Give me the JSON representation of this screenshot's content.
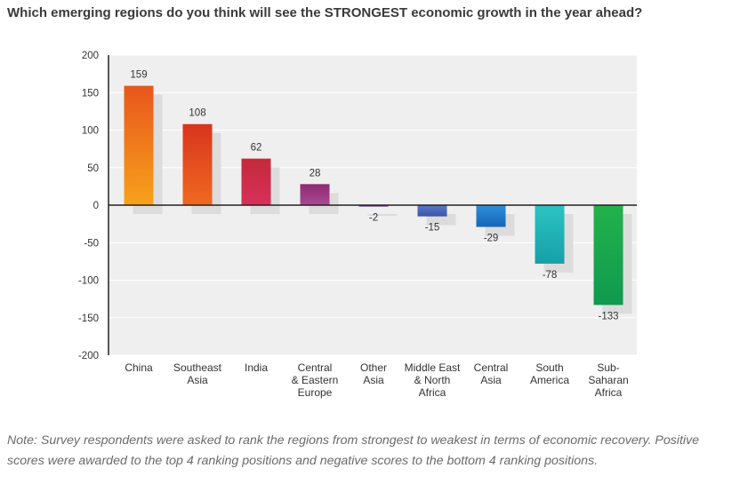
{
  "title": "Which emerging regions do you think will see the STRONGEST economic growth in the year ahead?",
  "note": "Note: Survey respondents were asked to rank the regions from strongest to weakest in terms of economic recovery. Positive scores were awarded to the top 4 ranking positions and negative scores to the bottom 4 ranking positions.",
  "chart_data": {
    "type": "bar",
    "categories": [
      [
        "China"
      ],
      [
        "Southeast",
        "Asia"
      ],
      [
        "India"
      ],
      [
        "Central",
        "& Eastern",
        "Europe"
      ],
      [
        "Other",
        "Asia"
      ],
      [
        "Middle East",
        "& North",
        "Africa"
      ],
      [
        "Central",
        "Asia"
      ],
      [
        "South",
        "America"
      ],
      [
        "Sub-",
        "Saharan",
        "Africa"
      ]
    ],
    "values": [
      159,
      108,
      62,
      28,
      -2,
      -15,
      -29,
      -78,
      -133
    ],
    "ylim": [
      -200,
      200
    ],
    "yticks": [
      200,
      150,
      100,
      50,
      0,
      -50,
      -100,
      -150,
      -200
    ],
    "grid": true,
    "colors": [
      [
        "#f7a21b",
        "#e8561c"
      ],
      [
        "#ef6a20",
        "#d9341e"
      ],
      [
        "#d8305a",
        "#c42a3a"
      ],
      [
        "#a84a95",
        "#8e2a6e"
      ],
      [
        "#6b4aa8",
        "#7a3f9a"
      ],
      [
        "#5a78c8",
        "#3a55a8"
      ],
      [
        "#2f8fd8",
        "#1565b8"
      ],
      [
        "#2cc3c3",
        "#16a0a8"
      ],
      [
        "#22b24c",
        "#0f9a4e"
      ]
    ]
  }
}
